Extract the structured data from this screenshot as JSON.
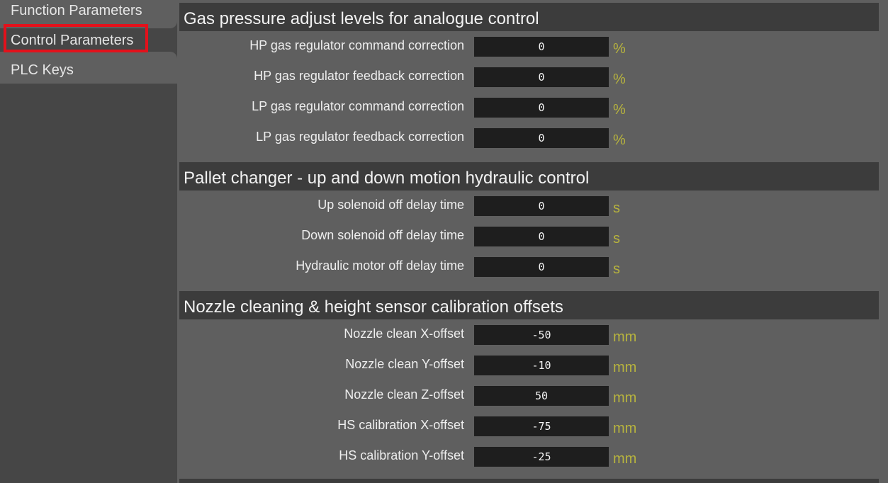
{
  "sidebar": {
    "tabs": [
      {
        "label": "Function Parameters"
      },
      {
        "label": "Control Parameters"
      },
      {
        "label": "PLC Keys"
      }
    ]
  },
  "sections": [
    {
      "title": "Gas pressure adjust levels for analogue control",
      "rows": [
        {
          "label": "HP gas regulator command correction",
          "value": "0",
          "unit": "%"
        },
        {
          "label": "HP gas regulator feedback correction",
          "value": "0",
          "unit": "%"
        },
        {
          "label": "LP gas regulator command correction",
          "value": "0",
          "unit": "%"
        },
        {
          "label": "LP gas regulator feedback correction",
          "value": "0",
          "unit": "%"
        }
      ]
    },
    {
      "title": "Pallet changer - up and down motion hydraulic control",
      "rows": [
        {
          "label": "Up solenoid off delay time",
          "value": "0",
          "unit": "s"
        },
        {
          "label": "Down solenoid off delay time",
          "value": "0",
          "unit": "s"
        },
        {
          "label": "Hydraulic motor off delay time",
          "value": "0",
          "unit": "s"
        }
      ]
    },
    {
      "title": "Nozzle cleaning & height sensor calibration offsets",
      "rows": [
        {
          "label": "Nozzle clean X-offset",
          "value": "-50",
          "unit": "mm"
        },
        {
          "label": "Nozzle clean Y-offset",
          "value": "-10",
          "unit": "mm"
        },
        {
          "label": "Nozzle clean Z-offset",
          "value": "50",
          "unit": "mm"
        },
        {
          "label": "HS calibration X-offset",
          "value": "-75",
          "unit": "mm"
        },
        {
          "label": "HS calibration Y-offset",
          "value": "-25",
          "unit": "mm"
        }
      ]
    }
  ],
  "colors": {
    "background": "#5f5f5f",
    "sidebar": "#464646",
    "header": "#3c3c3c",
    "input": "#1e1e1e",
    "unit": "#b7b33e",
    "selection": "#e3111b"
  }
}
